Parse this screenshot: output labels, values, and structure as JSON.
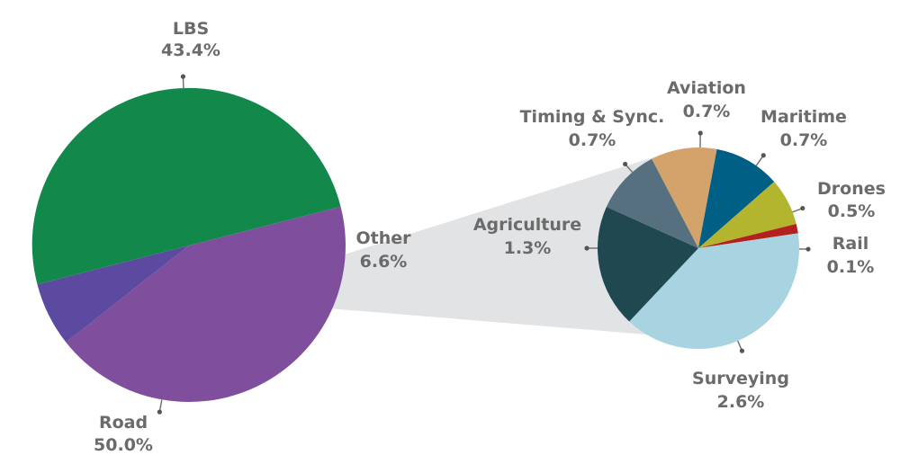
{
  "chart_data": [
    {
      "type": "pie",
      "slices": [
        {
          "label": "LBS",
          "value": 43.4,
          "value_label": "43.4%",
          "color": "#7f4f9e"
        },
        {
          "label": "Other",
          "value": 6.6,
          "value_label": "6.6%",
          "color": "#5c4aa0"
        },
        {
          "label": "Road",
          "value": 50.0,
          "value_label": "50.0%",
          "color": "#13884b"
        }
      ]
    },
    {
      "type": "pie",
      "slices": [
        {
          "label": "Aviation",
          "value": 0.7,
          "value_label": "0.7%",
          "color": "#d4a26b"
        },
        {
          "label": "Maritime",
          "value": 0.7,
          "value_label": "0.7%",
          "color": "#005f85"
        },
        {
          "label": "Drones",
          "value": 0.5,
          "value_label": "0.5%",
          "color": "#b3b52e"
        },
        {
          "label": "Rail",
          "value": 0.1,
          "value_label": "0.1%",
          "color": "#b3201e"
        },
        {
          "label": "Surveying",
          "value": 2.6,
          "value_label": "2.6%",
          "color": "#a8d3e0"
        },
        {
          "label": "Agriculture",
          "value": 1.3,
          "value_label": "1.3%",
          "color": "#1f4850"
        },
        {
          "label": "Timing & Sync.",
          "value": 0.7,
          "value_label": "0.7%",
          "color": "#56707f"
        }
      ]
    }
  ],
  "colors": {
    "connector": "#e2e3e5",
    "label_text": "#6b6b6b"
  }
}
